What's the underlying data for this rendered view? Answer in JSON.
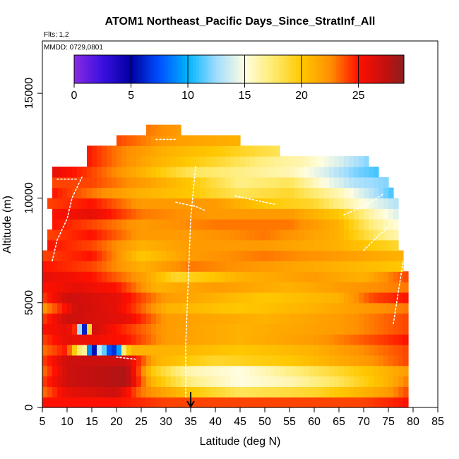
{
  "chart_data": {
    "type": "heatmap",
    "title": "ATOM1 Northeast_Pacific Days_Since_StratInf_All",
    "flights_label": "Flts: 1,2",
    "dates_label": "MMDD: 0729,0801",
    "xlabel": "Latitude (deg N)",
    "ylabel": "Altitude (m)",
    "xlim": [
      5,
      85
    ],
    "ylim": [
      0,
      17500
    ],
    "x_ticks": [
      5,
      10,
      15,
      20,
      25,
      30,
      35,
      40,
      45,
      50,
      55,
      60,
      65,
      70,
      75,
      80,
      85
    ],
    "y_ticks": [
      0,
      5000,
      10000,
      15000
    ],
    "colorbar": {
      "range": [
        0,
        29
      ],
      "ticks": [
        0,
        5,
        10,
        15,
        20,
        25
      ],
      "stops": [
        {
          "v": 0,
          "c": "#8a2be2"
        },
        {
          "v": 2.5,
          "c": "#3a10e0"
        },
        {
          "v": 5,
          "c": "#0000a0"
        },
        {
          "v": 7.5,
          "c": "#0050ff"
        },
        {
          "v": 10,
          "c": "#00b4ff"
        },
        {
          "v": 12.5,
          "c": "#a0dcff"
        },
        {
          "v": 15,
          "c": "#fffde0"
        },
        {
          "v": 17.5,
          "c": "#ffeb70"
        },
        {
          "v": 20,
          "c": "#ffc800"
        },
        {
          "v": 22.5,
          "c": "#ff9000"
        },
        {
          "v": 25,
          "c": "#ff1000"
        },
        {
          "v": 27.5,
          "c": "#c01010"
        },
        {
          "v": 29,
          "c": "#8b2020"
        }
      ]
    },
    "arrow_marker_lat": 35,
    "layers": [
      {
        "alt": 250,
        "x0": 5,
        "x1": 79,
        "knots": [
          [
            5,
            25
          ],
          [
            20,
            25
          ],
          [
            30,
            24
          ],
          [
            50,
            24
          ],
          [
            70,
            24
          ],
          [
            79,
            25
          ]
        ]
      },
      {
        "alt": 750,
        "x0": 5,
        "x1": 79,
        "knots": [
          [
            5,
            23
          ],
          [
            10,
            26
          ],
          [
            20,
            27
          ],
          [
            25,
            23
          ],
          [
            35,
            20
          ],
          [
            45,
            18
          ],
          [
            60,
            19
          ],
          [
            75,
            22
          ],
          [
            79,
            24
          ]
        ]
      },
      {
        "alt": 1250,
        "x0": 5,
        "x1": 79,
        "knots": [
          [
            5,
            24
          ],
          [
            10,
            27
          ],
          [
            22,
            28
          ],
          [
            27,
            21
          ],
          [
            35,
            17
          ],
          [
            45,
            15
          ],
          [
            55,
            16
          ],
          [
            65,
            18
          ],
          [
            75,
            21
          ],
          [
            79,
            23
          ]
        ]
      },
      {
        "alt": 1750,
        "x0": 5,
        "x1": 79,
        "knots": [
          [
            5,
            23
          ],
          [
            10,
            27
          ],
          [
            22,
            28
          ],
          [
            27,
            20
          ],
          [
            35,
            16
          ],
          [
            45,
            15
          ],
          [
            55,
            17
          ],
          [
            70,
            20
          ],
          [
            79,
            22
          ]
        ]
      },
      {
        "alt": 2250,
        "x0": 5,
        "x1": 79,
        "knots": [
          [
            5,
            24
          ],
          [
            10,
            27
          ],
          [
            22,
            27
          ],
          [
            28,
            21
          ],
          [
            40,
            19
          ],
          [
            55,
            20
          ],
          [
            70,
            22
          ],
          [
            79,
            24
          ]
        ]
      },
      {
        "alt": 2750,
        "x0": 5,
        "x1": 79,
        "knots": [
          [
            5,
            23
          ],
          [
            10,
            25
          ],
          [
            12,
            18
          ],
          [
            14,
            16
          ],
          [
            15,
            2
          ],
          [
            16,
            9
          ],
          [
            17,
            18
          ],
          [
            18,
            5
          ],
          [
            19,
            10
          ],
          [
            20,
            3
          ],
          [
            21,
            16
          ],
          [
            22,
            19
          ],
          [
            23,
            21
          ],
          [
            30,
            21
          ],
          [
            45,
            20
          ],
          [
            60,
            21
          ],
          [
            79,
            24
          ]
        ]
      },
      {
        "alt": 3250,
        "x0": 5,
        "x1": 79,
        "knots": [
          [
            5,
            24
          ],
          [
            10,
            26
          ],
          [
            22,
            25
          ],
          [
            30,
            22
          ],
          [
            45,
            21
          ],
          [
            60,
            22
          ],
          [
            79,
            25
          ]
        ]
      },
      {
        "alt": 3750,
        "x0": 5,
        "x1": 79,
        "knots": [
          [
            5,
            25
          ],
          [
            10,
            26
          ],
          [
            12,
            24
          ],
          [
            13,
            1
          ],
          [
            14,
            11
          ],
          [
            15,
            27
          ],
          [
            20,
            25
          ],
          [
            30,
            22
          ],
          [
            45,
            21
          ],
          [
            65,
            22
          ],
          [
            79,
            24
          ]
        ]
      },
      {
        "alt": 4250,
        "x0": 5,
        "x1": 79,
        "knots": [
          [
            5,
            24
          ],
          [
            10,
            27
          ],
          [
            22,
            26
          ],
          [
            30,
            22
          ],
          [
            50,
            21
          ],
          [
            65,
            22
          ],
          [
            79,
            24
          ]
        ]
      },
      {
        "alt": 4750,
        "x0": 5,
        "x1": 79,
        "knots": [
          [
            5,
            22
          ],
          [
            8,
            24
          ],
          [
            12,
            27
          ],
          [
            20,
            26
          ],
          [
            30,
            21
          ],
          [
            45,
            20
          ],
          [
            60,
            21
          ],
          [
            79,
            23
          ]
        ]
      },
      {
        "alt": 5250,
        "x0": 5,
        "x1": 79,
        "knots": [
          [
            5,
            24
          ],
          [
            10,
            27
          ],
          [
            20,
            26
          ],
          [
            30,
            22
          ],
          [
            50,
            20
          ],
          [
            65,
            21
          ],
          [
            72,
            24
          ],
          [
            79,
            25
          ]
        ]
      },
      {
        "alt": 5750,
        "x0": 5,
        "x1": 79,
        "knots": [
          [
            5,
            25
          ],
          [
            12,
            26
          ],
          [
            20,
            25
          ],
          [
            28,
            21
          ],
          [
            40,
            22
          ],
          [
            55,
            21
          ],
          [
            65,
            22
          ],
          [
            79,
            23
          ]
        ]
      },
      {
        "alt": 6250,
        "x0": 5,
        "x1": 79,
        "knots": [
          [
            5,
            26
          ],
          [
            15,
            25
          ],
          [
            25,
            22
          ],
          [
            32,
            19
          ],
          [
            45,
            21
          ],
          [
            60,
            22
          ],
          [
            70,
            21
          ],
          [
            79,
            24
          ]
        ]
      },
      {
        "alt": 6750,
        "x0": 5,
        "x1": 78,
        "knots": [
          [
            5,
            25
          ],
          [
            15,
            24
          ],
          [
            25,
            21
          ],
          [
            35,
            23
          ],
          [
            50,
            22
          ],
          [
            65,
            21
          ],
          [
            78,
            20
          ]
        ]
      },
      {
        "alt": 7250,
        "x0": 5,
        "x1": 78,
        "knots": [
          [
            5,
            24
          ],
          [
            15,
            25
          ],
          [
            25,
            20
          ],
          [
            35,
            22
          ],
          [
            50,
            23
          ],
          [
            65,
            22
          ],
          [
            78,
            21
          ]
        ]
      },
      {
        "alt": 7750,
        "x0": 6,
        "x1": 77,
        "knots": [
          [
            6,
            25
          ],
          [
            15,
            24
          ],
          [
            25,
            21
          ],
          [
            35,
            22
          ],
          [
            50,
            22
          ],
          [
            65,
            21
          ],
          [
            77,
            19
          ]
        ]
      },
      {
        "alt": 8250,
        "x0": 6,
        "x1": 77,
        "knots": [
          [
            6,
            24
          ],
          [
            15,
            25
          ],
          [
            25,
            22
          ],
          [
            35,
            22
          ],
          [
            50,
            23
          ],
          [
            65,
            21
          ],
          [
            72,
            18
          ],
          [
            77,
            16
          ]
        ]
      },
      {
        "alt": 8750,
        "x0": 7,
        "x1": 77,
        "knots": [
          [
            7,
            25
          ],
          [
            15,
            24
          ],
          [
            25,
            22
          ],
          [
            40,
            23
          ],
          [
            55,
            23
          ],
          [
            65,
            21
          ],
          [
            72,
            17
          ],
          [
            77,
            15
          ]
        ]
      },
      {
        "alt": 9250,
        "x0": 7,
        "x1": 77,
        "knots": [
          [
            7,
            25
          ],
          [
            15,
            26
          ],
          [
            25,
            23
          ],
          [
            40,
            22
          ],
          [
            55,
            22
          ],
          [
            65,
            20
          ],
          [
            72,
            16
          ],
          [
            77,
            14
          ]
        ]
      },
      {
        "alt": 9750,
        "x0": 6,
        "x1": 77,
        "knots": [
          [
            6,
            24
          ],
          [
            15,
            25
          ],
          [
            25,
            22
          ],
          [
            40,
            22
          ],
          [
            50,
            20
          ],
          [
            60,
            19
          ],
          [
            70,
            15
          ],
          [
            77,
            13
          ]
        ]
      },
      {
        "alt": 10250,
        "x0": 7,
        "x1": 76,
        "knots": [
          [
            7,
            25
          ],
          [
            15,
            23
          ],
          [
            25,
            21
          ],
          [
            35,
            20
          ],
          [
            45,
            18
          ],
          [
            55,
            19
          ],
          [
            65,
            16
          ],
          [
            72,
            13
          ],
          [
            76,
            11
          ]
        ]
      },
      {
        "alt": 10750,
        "x0": 7,
        "x1": 75,
        "knots": [
          [
            7,
            24
          ],
          [
            15,
            24
          ],
          [
            25,
            22
          ],
          [
            35,
            20
          ],
          [
            45,
            17
          ],
          [
            55,
            18
          ],
          [
            62,
            15
          ],
          [
            68,
            13
          ],
          [
            75,
            12
          ]
        ]
      },
      {
        "alt": 11250,
        "x0": 7,
        "x1": 73,
        "knots": [
          [
            7,
            26
          ],
          [
            15,
            24
          ],
          [
            25,
            21
          ],
          [
            35,
            18
          ],
          [
            45,
            17
          ],
          [
            55,
            16
          ],
          [
            62,
            14
          ],
          [
            68,
            12
          ],
          [
            73,
            11
          ]
        ]
      },
      {
        "alt": 11750,
        "x0": 14,
        "x1": 71,
        "knots": [
          [
            14,
            25
          ],
          [
            20,
            23
          ],
          [
            28,
            21
          ],
          [
            40,
            19
          ],
          [
            50,
            17
          ],
          [
            58,
            16
          ],
          [
            65,
            14
          ],
          [
            71,
            12
          ]
        ]
      },
      {
        "alt": 12250,
        "x0": 14,
        "x1": 53,
        "knots": [
          [
            14,
            25
          ],
          [
            20,
            23
          ],
          [
            30,
            21
          ],
          [
            40,
            20
          ],
          [
            53,
            18
          ]
        ]
      },
      {
        "alt": 12750,
        "x0": 20,
        "x1": 45,
        "knots": [
          [
            20,
            24
          ],
          [
            30,
            22
          ],
          [
            45,
            21
          ]
        ]
      },
      {
        "alt": 13250,
        "x0": 26,
        "x1": 33,
        "knots": [
          [
            26,
            23
          ],
          [
            33,
            22
          ]
        ]
      }
    ],
    "white_traces": [
      {
        "points": [
          [
            7,
            7000
          ],
          [
            8,
            8000
          ],
          [
            10,
            9000
          ],
          [
            11,
            10000
          ],
          [
            13,
            11000
          ]
        ]
      },
      {
        "points": [
          [
            34,
            500
          ],
          [
            34,
            3000
          ],
          [
            34.5,
            6000
          ],
          [
            35,
            9000
          ],
          [
            36,
            11500
          ]
        ]
      },
      {
        "points": [
          [
            32,
            9800
          ],
          [
            36,
            9600
          ],
          [
            38,
            9400
          ]
        ]
      },
      {
        "points": [
          [
            44,
            10100
          ],
          [
            48,
            9900
          ],
          [
            52,
            9700
          ]
        ]
      },
      {
        "points": [
          [
            66,
            9200
          ],
          [
            70,
            9600
          ],
          [
            74,
            10200
          ]
        ]
      },
      {
        "points": [
          [
            70,
            7500
          ],
          [
            73,
            8200
          ],
          [
            75,
            8600
          ]
        ]
      },
      {
        "points": [
          [
            28,
            12800
          ],
          [
            32,
            12800
          ]
        ]
      },
      {
        "points": [
          [
            8,
            10900
          ],
          [
            12,
            10900
          ]
        ]
      },
      {
        "points": [
          [
            20,
            2400
          ],
          [
            24,
            2300
          ]
        ]
      },
      {
        "points": [
          [
            76,
            4000
          ],
          [
            77,
            5500
          ],
          [
            78,
            7000
          ]
        ]
      }
    ]
  }
}
